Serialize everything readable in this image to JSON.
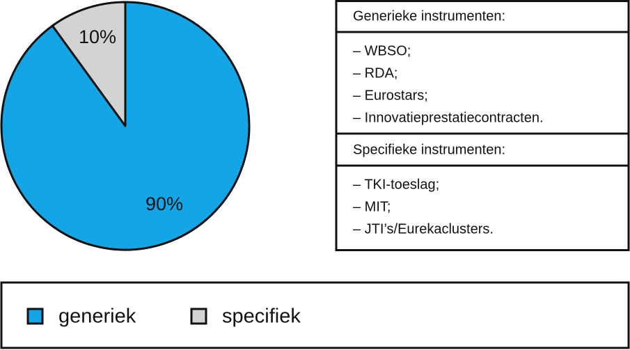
{
  "chart_data": {
    "type": "pie",
    "categories": [
      "generiek",
      "specifiek"
    ],
    "values": [
      90,
      10
    ],
    "value_labels": [
      "90%",
      "10%"
    ],
    "colors": [
      "#14a5e6",
      "#d3d3d3"
    ],
    "legend": "bottom"
  },
  "info_box": {
    "sections": [
      {
        "title": "Generieke instrumenten:",
        "items": [
          "– WBSO;",
          "– RDA;",
          "– Eurostars;",
          "– Innovatieprestatiecontracten."
        ]
      },
      {
        "title": "Specifieke instrumenten:",
        "items": [
          "– TKI-toeslag;",
          "– MIT;",
          "– JTI’s/Eurekaclusters."
        ]
      }
    ]
  }
}
